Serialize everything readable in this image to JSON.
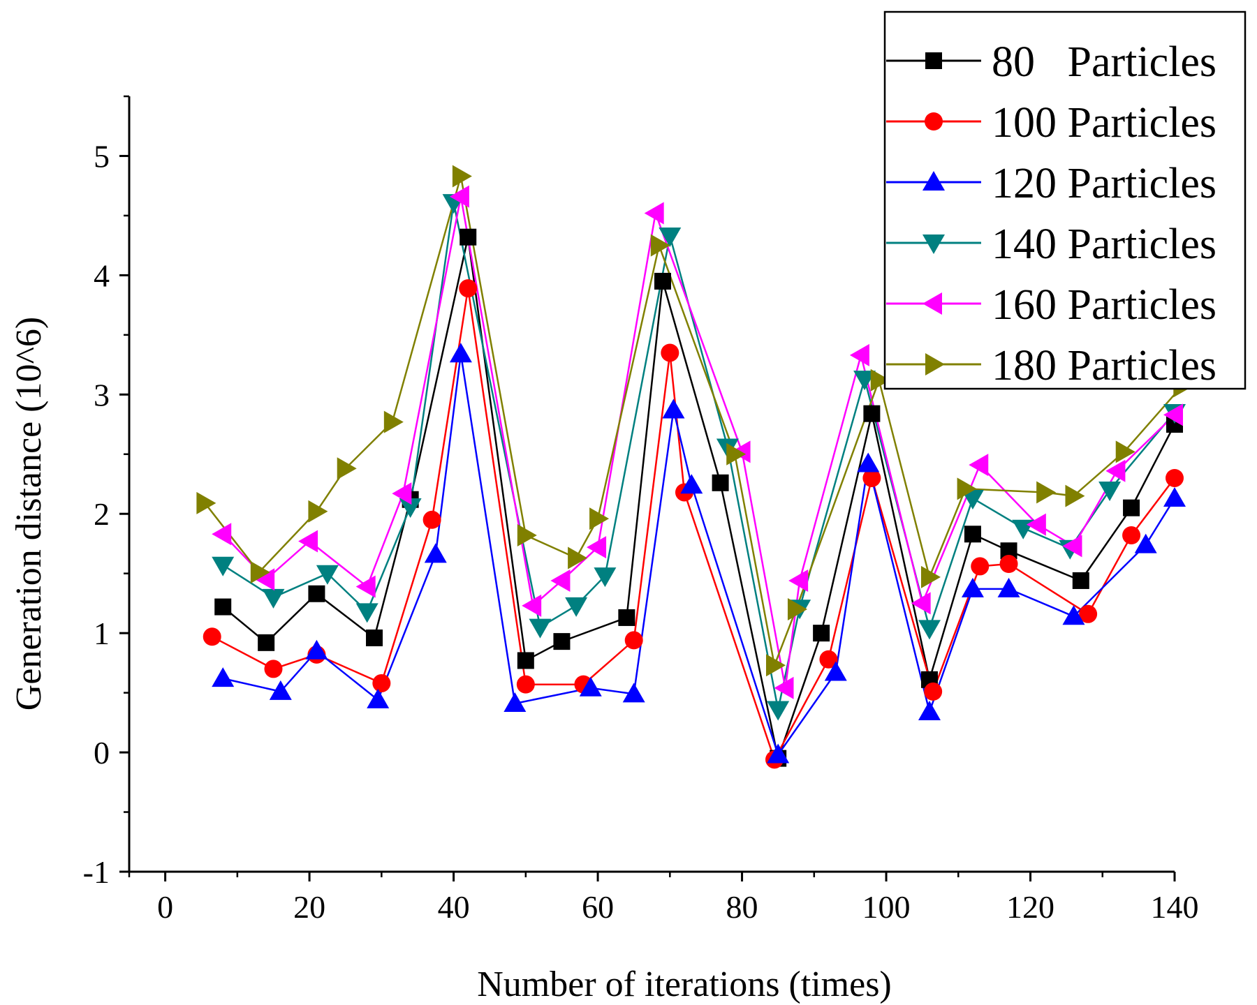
{
  "chart_data": {
    "type": "line",
    "title": "",
    "xlabel": "Number of iterations (times)",
    "ylabel": "Generation distance (10^6)",
    "xlim": [
      -5,
      140
    ],
    "ylim": [
      -1,
      5.5
    ],
    "xticks": [
      0,
      20,
      40,
      60,
      80,
      100,
      120,
      140
    ],
    "yticks": [
      -1,
      0,
      1,
      2,
      3,
      4,
      5
    ],
    "xtick_labels": [
      "0",
      "20",
      "40",
      "60",
      "80",
      "100",
      "120",
      "140"
    ],
    "ytick_labels": [
      "-1",
      "0",
      "1",
      "2",
      "3",
      "4",
      "5"
    ],
    "legend_position": "top-right",
    "series": [
      {
        "name": "80   Particles",
        "color": "#000000",
        "marker": "square",
        "x": [
          8,
          14,
          21,
          29,
          34,
          42,
          50,
          55,
          64,
          69,
          77,
          85,
          91,
          98,
          106,
          112,
          117,
          127,
          134,
          140
        ],
        "y": [
          1.22,
          0.92,
          1.33,
          0.96,
          2.12,
          4.32,
          0.77,
          0.93,
          1.13,
          3.95,
          2.26,
          -0.05,
          1.0,
          2.84,
          0.61,
          1.83,
          1.69,
          1.44,
          2.05,
          2.75
        ]
      },
      {
        "name": "100 Particles",
        "color": "#ff0000",
        "marker": "circle",
        "x": [
          6.5,
          15,
          21,
          30,
          37,
          42,
          50,
          58,
          65,
          70,
          72,
          84.5,
          92,
          98,
          106.5,
          113,
          117,
          128,
          134,
          140
        ],
        "y": [
          0.97,
          0.7,
          0.82,
          0.58,
          1.95,
          3.89,
          0.57,
          0.57,
          0.94,
          3.35,
          2.18,
          -0.06,
          0.78,
          2.3,
          0.51,
          1.56,
          1.58,
          1.16,
          1.82,
          2.3
        ]
      },
      {
        "name": "120 Particles",
        "color": "#0000ff",
        "marker": "triangle-up",
        "x": [
          8,
          16,
          21,
          29.5,
          37.5,
          41,
          48.5,
          59,
          65,
          70.5,
          73,
          85,
          93,
          97.5,
          106,
          112,
          117,
          126,
          136,
          140
        ],
        "y": [
          0.62,
          0.51,
          0.85,
          0.44,
          1.66,
          3.34,
          0.41,
          0.54,
          0.49,
          2.87,
          2.24,
          -0.02,
          0.67,
          2.42,
          0.34,
          1.37,
          1.37,
          1.14,
          1.74,
          2.13
        ]
      },
      {
        "name": "140 Particles",
        "color": "#008080",
        "marker": "triangle-down",
        "x": [
          8,
          15,
          22.5,
          28,
          34,
          40,
          52,
          57,
          61,
          70,
          78,
          85,
          88,
          97,
          106,
          112,
          119,
          125.5,
          131,
          140
        ],
        "y": [
          1.57,
          1.3,
          1.5,
          1.18,
          2.06,
          4.61,
          1.05,
          1.23,
          1.48,
          4.33,
          2.56,
          0.36,
          1.21,
          3.13,
          1.04,
          2.13,
          1.88,
          1.71,
          2.2,
          2.85
        ]
      },
      {
        "name": "160 Particles",
        "color": "#ff00ff",
        "marker": "triangle-left",
        "x": [
          8,
          14,
          20,
          28,
          33,
          41,
          51,
          55,
          60,
          68,
          80,
          86,
          88,
          96.5,
          105,
          113,
          121,
          126,
          132,
          140
        ],
        "y": [
          1.83,
          1.45,
          1.77,
          1.39,
          2.17,
          4.66,
          1.23,
          1.44,
          1.72,
          4.52,
          2.52,
          0.54,
          1.44,
          3.33,
          1.25,
          2.41,
          1.91,
          1.73,
          2.36,
          2.83
        ]
      },
      {
        "name": "180 Particles",
        "color": "#808000",
        "marker": "triangle-right",
        "x": [
          5.5,
          13,
          21,
          25,
          31.5,
          41,
          50,
          57,
          60,
          68.5,
          79,
          84.5,
          87.5,
          99,
          106,
          111,
          122,
          126,
          133,
          141
        ],
        "y": [
          2.09,
          1.51,
          2.02,
          2.38,
          2.77,
          4.83,
          1.82,
          1.63,
          1.96,
          4.25,
          2.5,
          0.73,
          1.2,
          3.12,
          1.47,
          2.21,
          2.18,
          2.15,
          2.52,
          3.07
        ]
      }
    ]
  }
}
